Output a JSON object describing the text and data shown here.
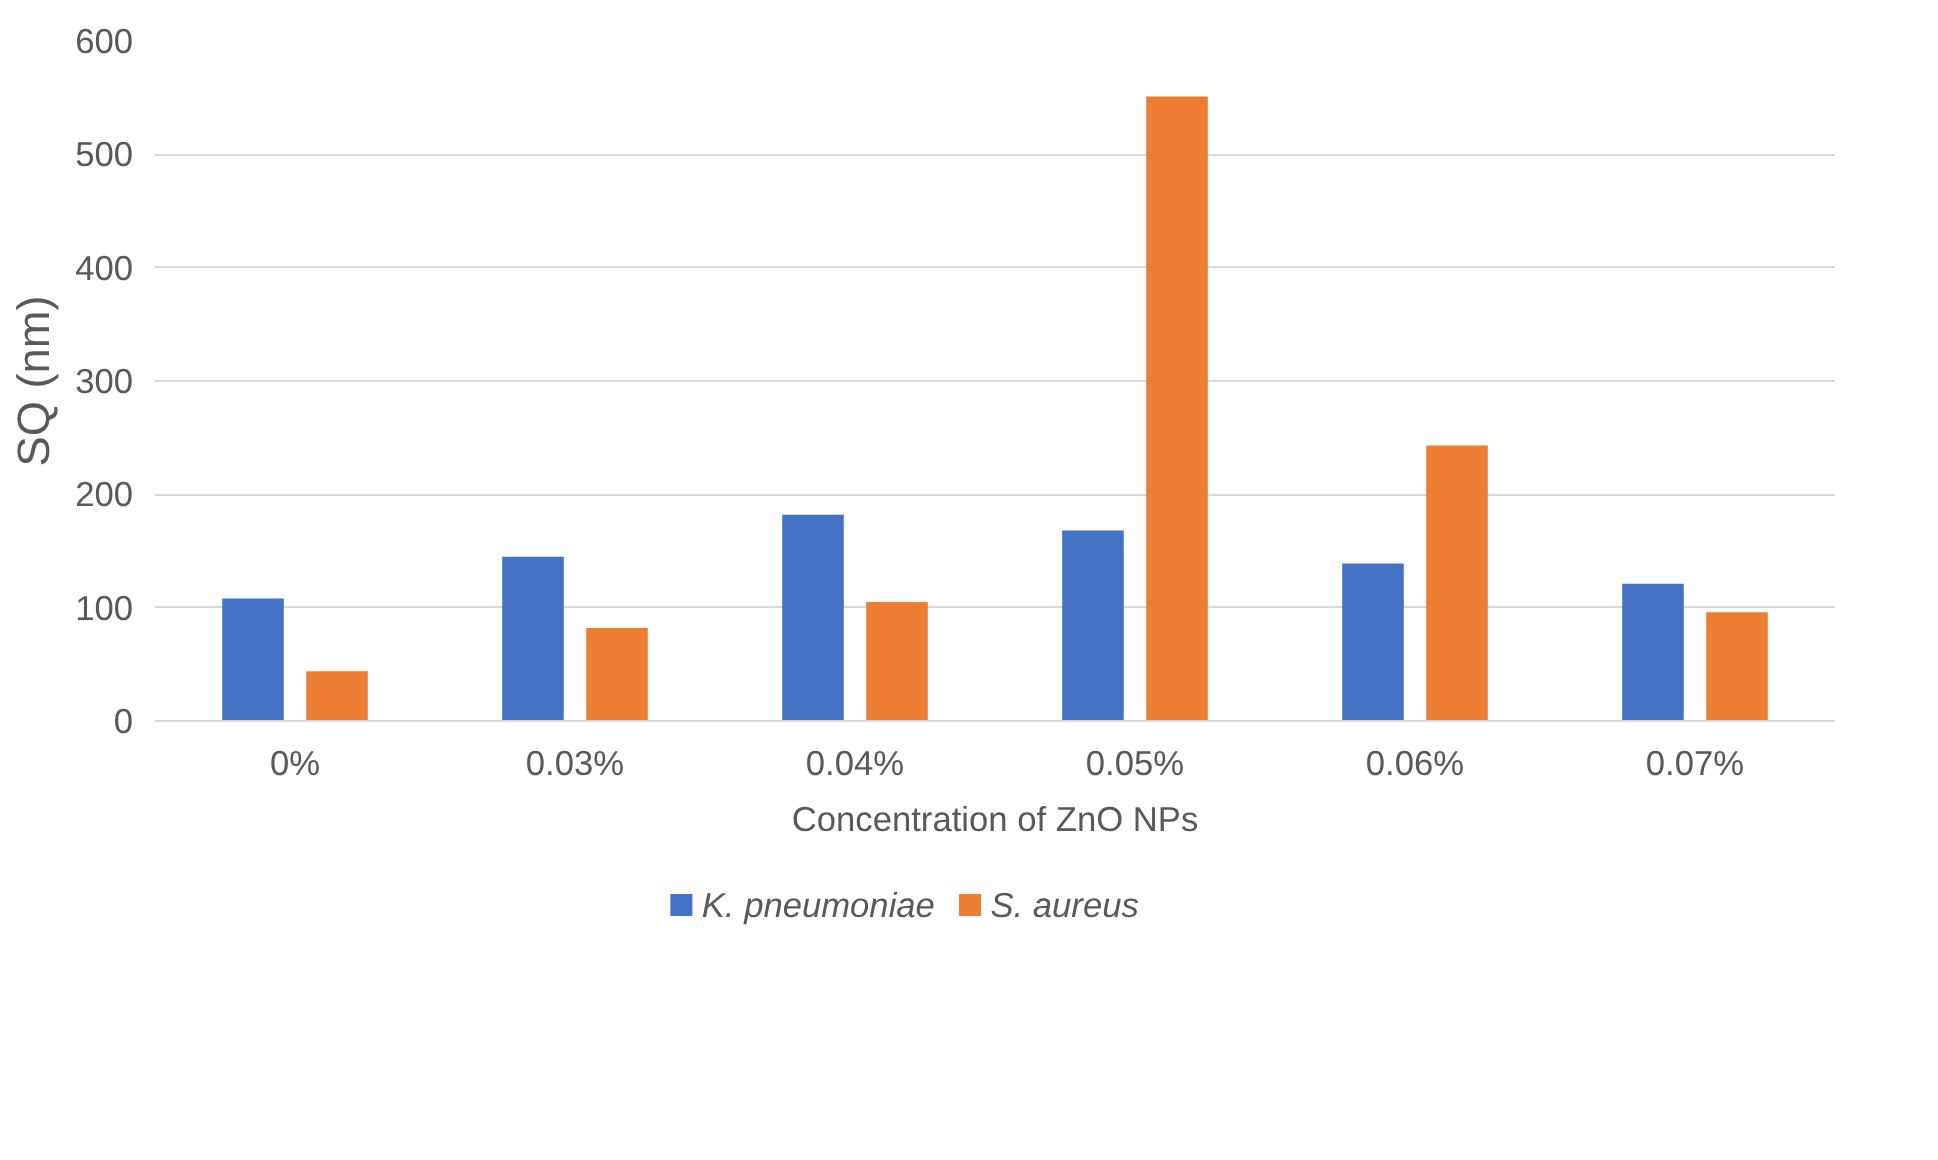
{
  "chart_data": {
    "type": "bar",
    "xlabel": "Concentration of ZnO NPs",
    "ylabel": "SQ (nm)",
    "categories": [
      "0%",
      "0.03%",
      "0.04%",
      "0.05%",
      "0.06%",
      "0.07%"
    ],
    "series": [
      {
        "name": "K. pneumoniae",
        "color": "#4472c4",
        "values": [
          108,
          145,
          182,
          168,
          139,
          121
        ]
      },
      {
        "name": "S. aureus",
        "color": "#ed7d31",
        "values": [
          44,
          82,
          105,
          551,
          243,
          96
        ]
      }
    ],
    "ylim": [
      0,
      600
    ],
    "yticks": [
      0,
      100,
      200,
      300,
      400,
      500,
      600
    ],
    "grid": "y",
    "legend": "bottom"
  }
}
